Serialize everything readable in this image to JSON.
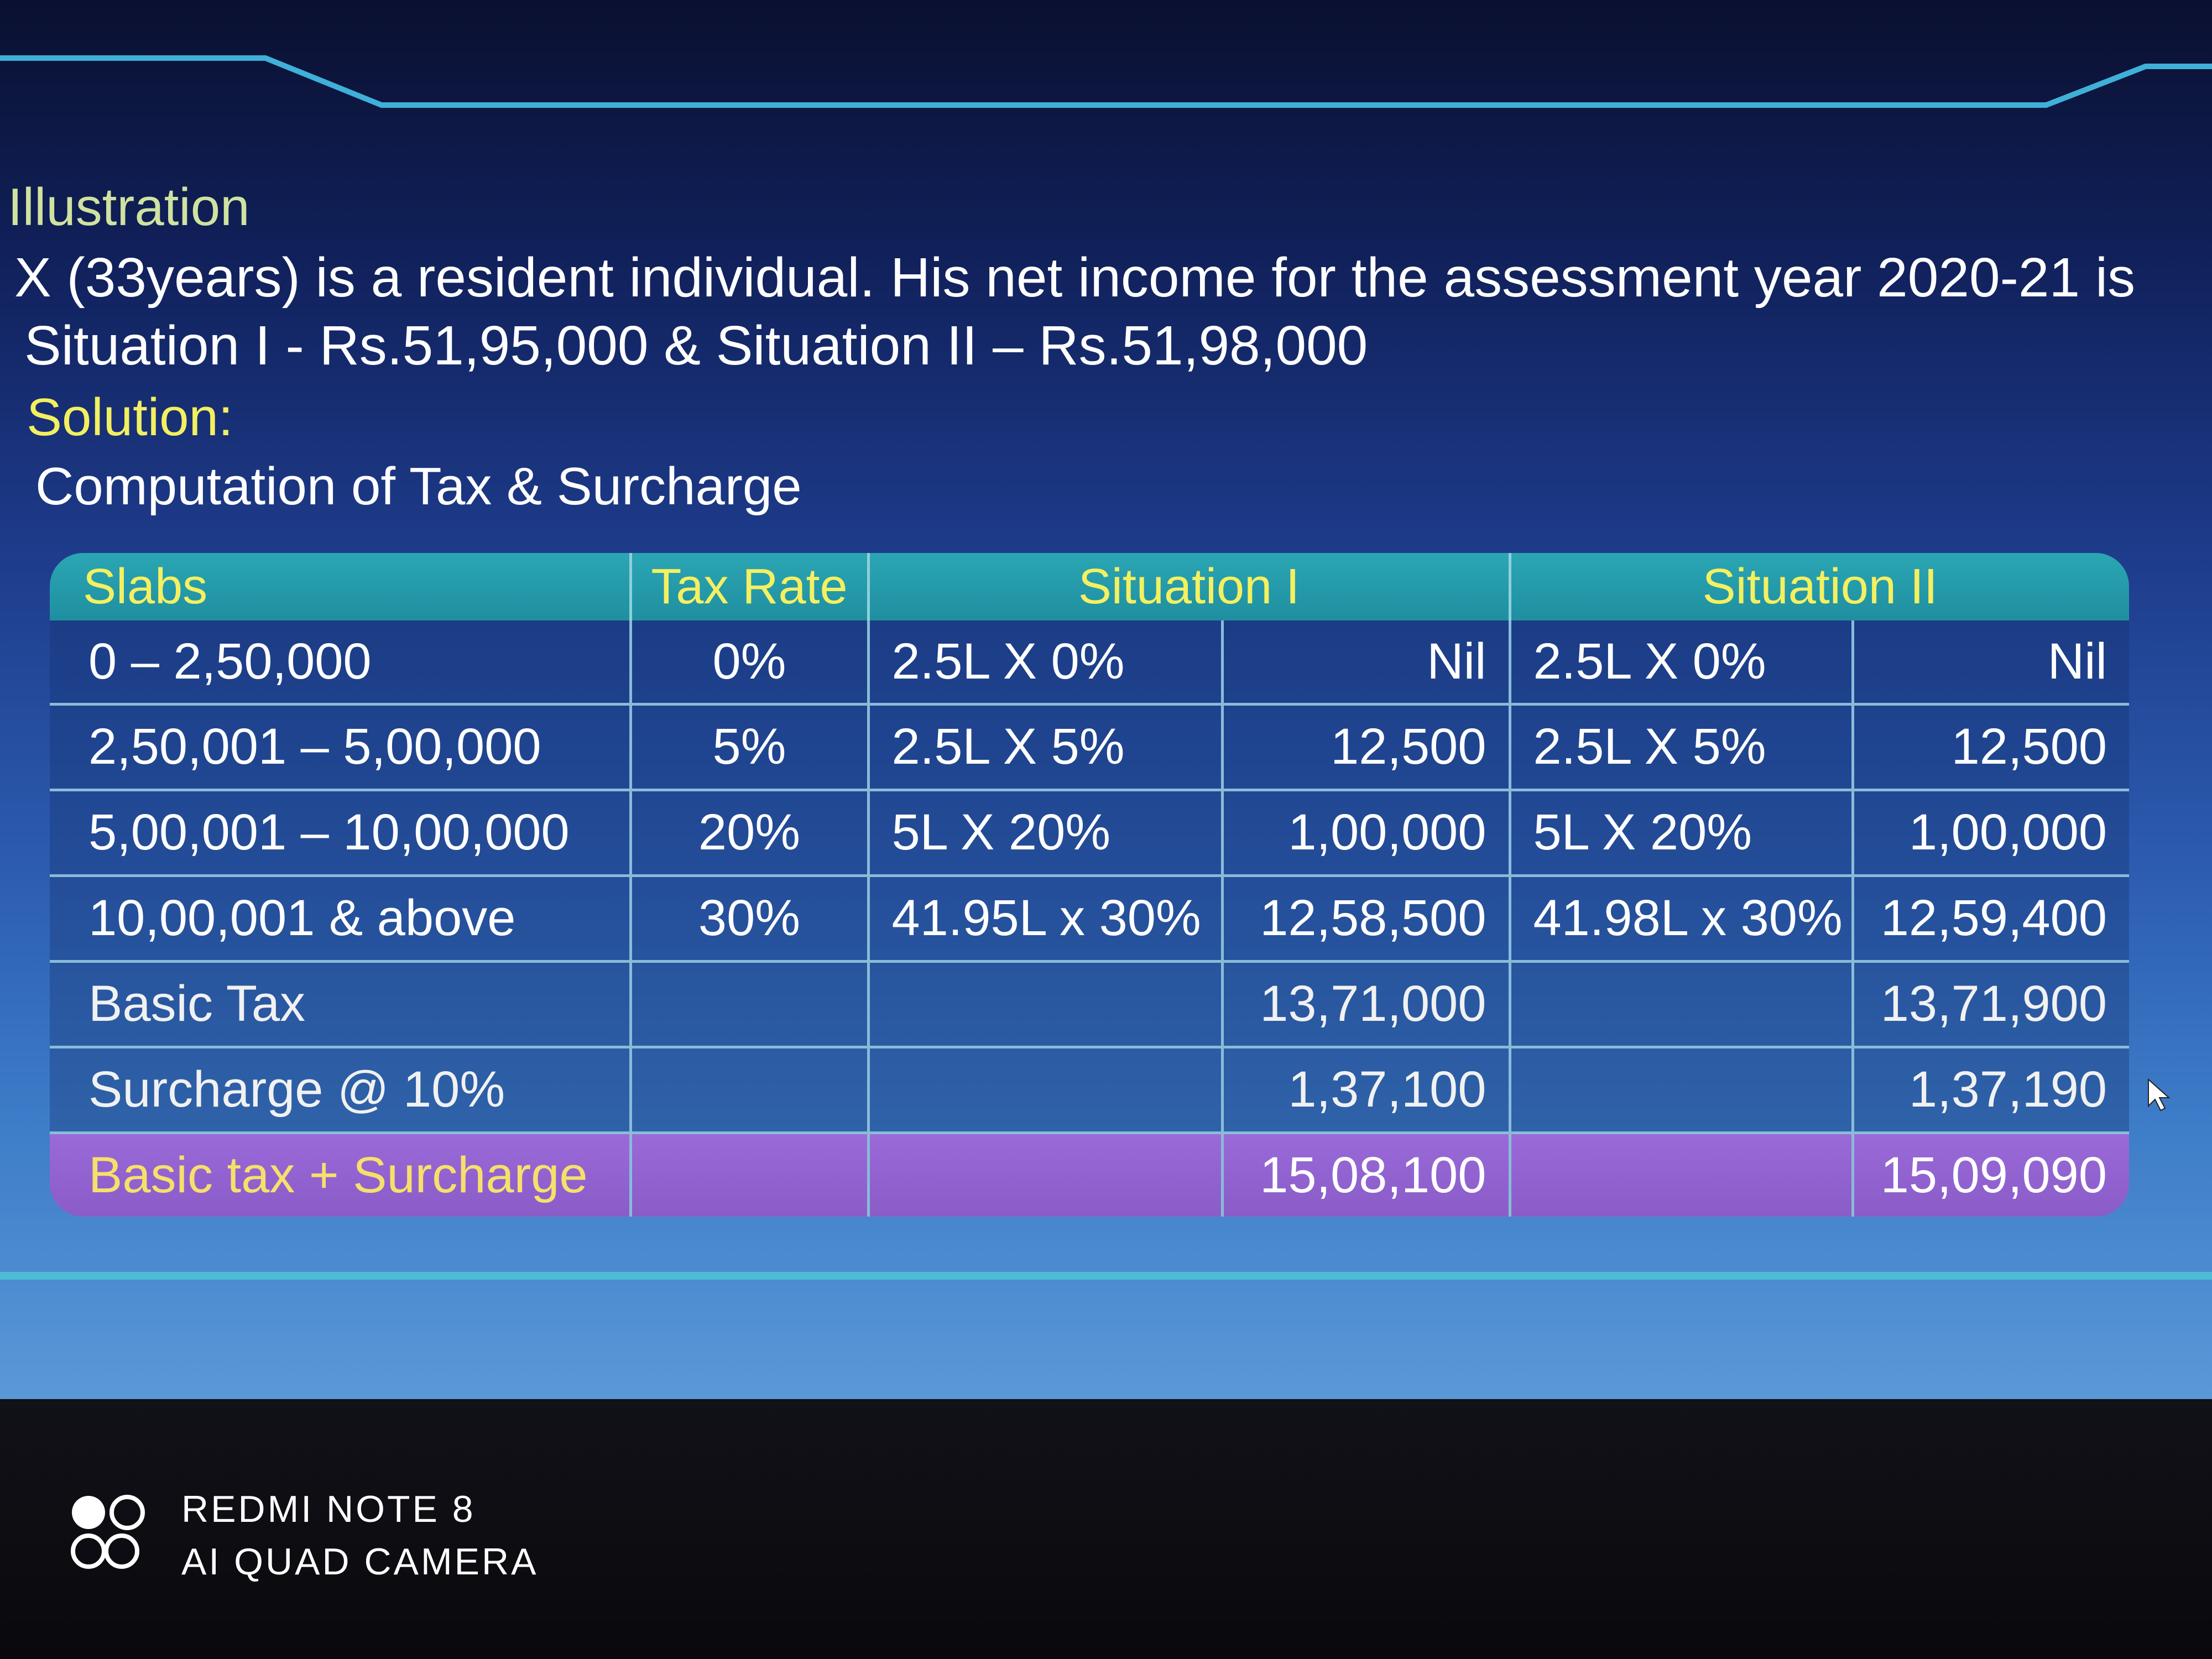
{
  "slide": {
    "illustration_label": "Illustration",
    "problem_line1": "X (33years) is a resident individual. His net income for the assessment year 2020-21 is",
    "problem_line2": "Situation I - Rs.51,95,000 & Situation II – Rs.51,98,000",
    "solution_label": "Solution:",
    "computation_title": "Computation of Tax & Surcharge"
  },
  "table": {
    "headers": {
      "slabs": "Slabs",
      "tax_rate": "Tax Rate",
      "situation1": "Situation I",
      "situation2": "Situation II"
    },
    "rows": [
      {
        "slab": "0 – 2,50,000",
        "rate": "0%",
        "s1_calc": "2.5L X 0%",
        "s1_amount": "Nil",
        "s2_calc": "2.5L X 0%",
        "s2_amount": "Nil"
      },
      {
        "slab": "2,50,001 – 5,00,000",
        "rate": "5%",
        "s1_calc": "2.5L X 5%",
        "s1_amount": "12,500",
        "s2_calc": "2.5L X 5%",
        "s2_amount": "12,500"
      },
      {
        "slab": "5,00,001 – 10,00,000",
        "rate": "20%",
        "s1_calc": "5L X 20%",
        "s1_amount": "1,00,000",
        "s2_calc": "5L X 20%",
        "s2_amount": "1,00,000"
      },
      {
        "slab": "10,00,001 & above",
        "rate": "30%",
        "s1_calc": "41.95L x 30%",
        "s1_amount": "12,58,500",
        "s2_calc": "41.98L x 30%",
        "s2_amount": "12,59,400"
      },
      {
        "slab": "Basic Tax",
        "rate": "",
        "s1_calc": "",
        "s1_amount": "13,71,000",
        "s2_calc": "",
        "s2_amount": "13,71,900"
      },
      {
        "slab": "Surcharge @ 10%",
        "rate": "",
        "s1_calc": "",
        "s1_amount": "1,37,100",
        "s2_calc": "",
        "s2_amount": "1,37,190"
      },
      {
        "slab": "Basic tax + Surcharge",
        "rate": "",
        "s1_calc": "",
        "s1_amount": "15,08,100",
        "s2_calc": "",
        "s2_amount": "15,09,090"
      }
    ]
  },
  "camera_watermark": {
    "line1": "REDMI NOTE 8",
    "line2": "AI QUAD CAMERA",
    "logo_icon": "camera-lens-logo-icon"
  },
  "colors": {
    "header_bg": "#1f8fa0",
    "header_text": "#f4f060",
    "total_row_bg": "#8a5cc8",
    "solution_text": "#f2f060"
  }
}
